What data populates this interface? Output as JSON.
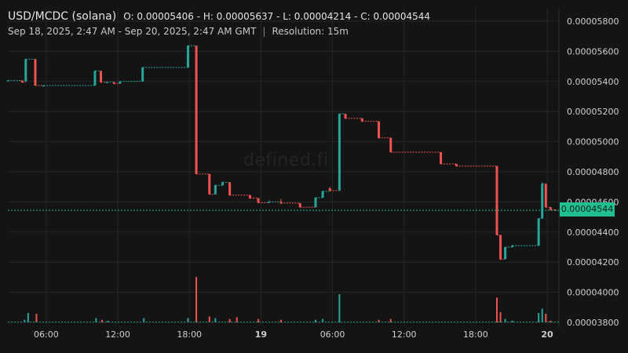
{
  "header": {
    "title": "USD/MCDC (solana)",
    "ohlc": "O: 0.00005406 - H: 0.00005637 - L: 0.00004214 - C: 0.00004544",
    "range": "Sep 18, 2025, 2:47 AM - Sep 20, 2025, 2:47 AM GMT",
    "separator": "|",
    "resolution": "Resolution: 15m"
  },
  "watermark": "defined.fi",
  "current_price_label": "0.00004544",
  "colors": {
    "up": "#26a69a",
    "down": "#ef5350",
    "background": "#141414",
    "grid": "#262626",
    "tag": "#1fbf8f"
  },
  "chart_data": {
    "type": "candlestick",
    "y_ticks": [
      "0.00005800",
      "0.00005600",
      "0.00005400",
      "0.00005200",
      "0.00005000",
      "0.00004800",
      "0.00004600",
      "0.00004400",
      "0.00004200",
      "0.00004000",
      "0.00003800"
    ],
    "ylim": [
      3.7e-05,
      5.85e-05
    ],
    "x_ticks": [
      {
        "t": 3.2167,
        "label": "06:00"
      },
      {
        "t": 9.2167,
        "label": "12:00"
      },
      {
        "t": 15.2167,
        "label": "18:00"
      },
      {
        "t": 21.2167,
        "label": "19",
        "bold": true
      },
      {
        "t": 27.2167,
        "label": "06:00"
      },
      {
        "t": 33.2167,
        "label": "12:00"
      },
      {
        "t": 39.2167,
        "label": "18:00"
      },
      {
        "t": 45.2167,
        "label": "20",
        "bold": true
      }
    ],
    "last_price": 4.544e-05,
    "candles": [
      {
        "t": 0.0,
        "o": 5.406e-05,
        "h": 5.406e-05,
        "l": 5.406e-05,
        "c": 5.406e-05
      },
      {
        "t": 1.2,
        "o": 5.406e-05,
        "h": 5.406e-05,
        "l": 5.39e-05,
        "c": 5.395e-05
      },
      {
        "t": 1.5,
        "o": 5.4e-05,
        "h": 5.548e-05,
        "l": 5.4e-05,
        "c": 5.548e-05
      },
      {
        "t": 2.3,
        "o": 5.548e-05,
        "h": 5.548e-05,
        "l": 5.37e-05,
        "c": 5.373e-05
      },
      {
        "t": 3.0,
        "o": 5.373e-05,
        "h": 5.373e-05,
        "l": 5.373e-05,
        "c": 5.373e-05
      },
      {
        "t": 7.3,
        "o": 5.373e-05,
        "h": 5.47e-05,
        "l": 5.373e-05,
        "c": 5.47e-05
      },
      {
        "t": 7.8,
        "o": 5.47e-05,
        "h": 5.47e-05,
        "l": 5.39e-05,
        "c": 5.395e-05
      },
      {
        "t": 8.3,
        "o": 5.395e-05,
        "h": 5.395e-05,
        "l": 5.395e-05,
        "c": 5.395e-05
      },
      {
        "t": 8.9,
        "o": 5.395e-05,
        "h": 5.395e-05,
        "l": 5.38e-05,
        "c": 5.385e-05
      },
      {
        "t": 9.4,
        "o": 5.385e-05,
        "h": 5.4e-05,
        "l": 5.385e-05,
        "c": 5.4e-05
      },
      {
        "t": 11.3,
        "o": 5.4e-05,
        "h": 5.493e-05,
        "l": 5.4e-05,
        "c": 5.493e-05
      },
      {
        "t": 15.1,
        "o": 5.493e-05,
        "h": 5.637e-05,
        "l": 5.493e-05,
        "c": 5.637e-05
      },
      {
        "t": 15.8,
        "o": 5.637e-05,
        "h": 5.637e-05,
        "l": 4.785e-05,
        "c": 4.785e-05
      },
      {
        "t": 16.9,
        "o": 4.785e-05,
        "h": 4.785e-05,
        "l": 4.65e-05,
        "c": 4.65e-05
      },
      {
        "t": 17.4,
        "o": 4.65e-05,
        "h": 4.715e-05,
        "l": 4.65e-05,
        "c": 4.71e-05
      },
      {
        "t": 18.0,
        "o": 4.71e-05,
        "h": 4.735e-05,
        "l": 4.71e-05,
        "c": 4.73e-05
      },
      {
        "t": 18.6,
        "o": 4.73e-05,
        "h": 4.73e-05,
        "l": 4.64e-05,
        "c": 4.645e-05
      },
      {
        "t": 20.3,
        "o": 4.645e-05,
        "h": 4.645e-05,
        "l": 4.62e-05,
        "c": 4.625e-05
      },
      {
        "t": 21.0,
        "o": 4.625e-05,
        "h": 4.625e-05,
        "l": 4.59e-05,
        "c": 4.595e-05
      },
      {
        "t": 21.9,
        "o": 4.595e-05,
        "h": 4.61e-05,
        "l": 4.595e-05,
        "c": 4.6e-05
      },
      {
        "t": 22.9,
        "o": 4.6e-05,
        "h": 4.62e-05,
        "l": 4.585e-05,
        "c": 4.592e-05
      },
      {
        "t": 24.5,
        "o": 4.592e-05,
        "h": 4.592e-05,
        "l": 4.56e-05,
        "c": 4.565e-05
      },
      {
        "t": 25.8,
        "o": 4.565e-05,
        "h": 4.63e-05,
        "l": 4.565e-05,
        "c": 4.628e-05
      },
      {
        "t": 26.4,
        "o": 4.628e-05,
        "h": 4.675e-05,
        "l": 4.628e-05,
        "c": 4.67e-05
      },
      {
        "t": 27.0,
        "o": 4.69e-05,
        "h": 4.7e-05,
        "l": 4.67e-05,
        "c": 4.675e-05
      },
      {
        "t": 27.8,
        "o": 4.675e-05,
        "h": 5.185e-05,
        "l": 4.675e-05,
        "c": 5.185e-05
      },
      {
        "t": 28.3,
        "o": 5.185e-05,
        "h": 5.185e-05,
        "l": 5.15e-05,
        "c": 5.155e-05
      },
      {
        "t": 29.7,
        "o": 5.155e-05,
        "h": 5.155e-05,
        "l": 5.13e-05,
        "c": 5.135e-05
      },
      {
        "t": 31.1,
        "o": 5.135e-05,
        "h": 5.135e-05,
        "l": 5.02e-05,
        "c": 5.025e-05
      },
      {
        "t": 32.1,
        "o": 5.025e-05,
        "h": 5.025e-05,
        "l": 4.93e-05,
        "c": 4.93e-05
      },
      {
        "t": 36.3,
        "o": 4.93e-05,
        "h": 4.93e-05,
        "l": 4.85e-05,
        "c": 4.852e-05
      },
      {
        "t": 37.6,
        "o": 4.852e-05,
        "h": 4.852e-05,
        "l": 4.835e-05,
        "c": 4.838e-05
      },
      {
        "t": 41.0,
        "o": 4.838e-05,
        "h": 4.838e-05,
        "l": 4.38e-05,
        "c": 4.38e-05
      },
      {
        "t": 41.3,
        "o": 4.38e-05,
        "h": 4.38e-05,
        "l": 4.214e-05,
        "c": 4.22e-05
      },
      {
        "t": 41.7,
        "o": 4.22e-05,
        "h": 4.3e-05,
        "l": 4.22e-05,
        "c": 4.3e-05
      },
      {
        "t": 42.3,
        "o": 4.3e-05,
        "h": 4.315e-05,
        "l": 4.3e-05,
        "c": 4.31e-05
      },
      {
        "t": 44.5,
        "o": 4.31e-05,
        "h": 4.49e-05,
        "l": 4.31e-05,
        "c": 4.49e-05
      },
      {
        "t": 44.8,
        "o": 4.49e-05,
        "h": 4.73e-05,
        "l": 4.49e-05,
        "c": 4.72e-05
      },
      {
        "t": 45.1,
        "o": 4.72e-05,
        "h": 4.72e-05,
        "l": 4.56e-05,
        "c": 4.565e-05
      },
      {
        "t": 45.5,
        "o": 4.565e-05,
        "h": 4.565e-05,
        "l": 4.544e-05,
        "c": 4.548e-05
      },
      {
        "t": 45.9,
        "o": 4.548e-05,
        "h": 4.548e-05,
        "l": 4.54e-05,
        "c": 4.544e-05
      }
    ],
    "volume": [
      {
        "t": 1.4,
        "v": 3,
        "up": true
      },
      {
        "t": 1.7,
        "v": 11,
        "up": true
      },
      {
        "t": 2.4,
        "v": 10,
        "up": false
      },
      {
        "t": 7.4,
        "v": 5,
        "up": true
      },
      {
        "t": 7.9,
        "v": 3,
        "up": false
      },
      {
        "t": 8.4,
        "v": 2,
        "up": true
      },
      {
        "t": 11.4,
        "v": 5,
        "up": true
      },
      {
        "t": 15.1,
        "v": 5,
        "up": true
      },
      {
        "t": 15.8,
        "v": 53,
        "up": false
      },
      {
        "t": 16.9,
        "v": 7,
        "up": false
      },
      {
        "t": 17.4,
        "v": 5,
        "up": true
      },
      {
        "t": 18.6,
        "v": 4,
        "up": false
      },
      {
        "t": 19.2,
        "v": 6,
        "up": false
      },
      {
        "t": 21.0,
        "v": 4,
        "up": false
      },
      {
        "t": 22.9,
        "v": 3,
        "up": false
      },
      {
        "t": 25.8,
        "v": 3,
        "up": true
      },
      {
        "t": 26.4,
        "v": 4,
        "up": true
      },
      {
        "t": 27.8,
        "v": 33,
        "up": true
      },
      {
        "t": 31.1,
        "v": 3,
        "up": false
      },
      {
        "t": 32.1,
        "v": 4,
        "up": false
      },
      {
        "t": 41.0,
        "v": 29,
        "up": false
      },
      {
        "t": 41.3,
        "v": 12,
        "up": false
      },
      {
        "t": 41.7,
        "v": 4,
        "up": true
      },
      {
        "t": 42.3,
        "v": 2,
        "up": true
      },
      {
        "t": 44.5,
        "v": 11,
        "up": true
      },
      {
        "t": 44.8,
        "v": 16,
        "up": true
      },
      {
        "t": 45.1,
        "v": 10,
        "up": false
      },
      {
        "t": 45.5,
        "v": 2,
        "up": false
      }
    ]
  }
}
